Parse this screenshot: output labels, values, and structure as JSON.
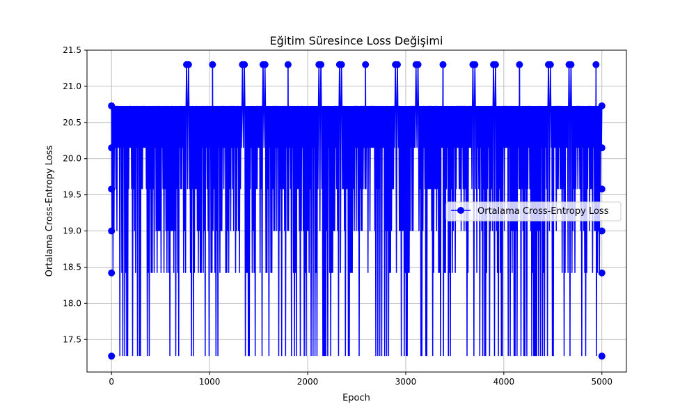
{
  "chart_data": {
    "type": "line",
    "title": "Eğitim Süresince Loss Değişimi",
    "xlabel": "Epoch",
    "ylabel": "Ortalama Cross-Entropy Loss",
    "xlim": [
      -250,
      5250
    ],
    "ylim": [
      17.05,
      21.5
    ],
    "x_ticks": [
      0,
      1000,
      2000,
      3000,
      4000,
      5000
    ],
    "y_ticks": [
      17.5,
      18.0,
      18.5,
      19.0,
      19.5,
      20.0,
      20.5,
      21.0,
      21.5
    ],
    "grid": true,
    "legend_position": "center-right",
    "series": [
      {
        "name": "Ortalama Cross-Entropy Loss",
        "color": "#0000ff",
        "marker": "circle",
        "n_epochs": 5000,
        "levels": [
          17.27,
          18.42,
          19.0,
          19.58,
          20.15,
          20.73
        ],
        "peak_value": 21.3,
        "peak_epochs": [
          765,
          785,
          1030,
          1335,
          1355,
          1545,
          1565,
          1800,
          2115,
          2135,
          2325,
          2345,
          2590,
          2895,
          2915,
          3105,
          3125,
          3380,
          3685,
          3705,
          3895,
          3915,
          4160,
          4455,
          4475,
          4665,
          4685,
          4940
        ]
      }
    ]
  }
}
